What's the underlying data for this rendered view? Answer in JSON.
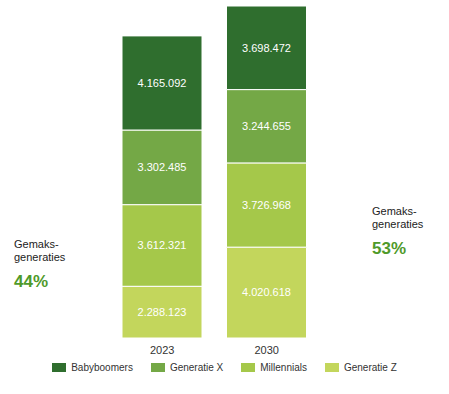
{
  "chart_data": {
    "type": "bar",
    "stacked": true,
    "data_labels": true,
    "tick_labels": "x",
    "legend": "bottom",
    "categories": [
      "2023",
      "2030"
    ],
    "series": [
      {
        "name": "Babyboomers",
        "color": "#2f6e2e",
        "values": [
          4165092,
          3698472
        ],
        "value_labels": [
          "4.165.092",
          "3.698.472"
        ]
      },
      {
        "name": "Generatie X",
        "color": "#74a846",
        "values": [
          3302485,
          3244655
        ],
        "value_labels": [
          "3.302.485",
          "3.244.655"
        ]
      },
      {
        "name": "Millennials",
        "color": "#a5c84a",
        "values": [
          3612321,
          3726968
        ],
        "value_labels": [
          "3.612.321",
          "3.726.968"
        ]
      },
      {
        "name": "Generatie Z",
        "color": "#c3d65c",
        "values": [
          2288123,
          4020618
        ],
        "value_labels": [
          "2.288.123",
          "4.020.618"
        ]
      }
    ],
    "annotations": [
      {
        "category": "2023",
        "text": "Gemaks-generaties",
        "label": "44%"
      },
      {
        "category": "2030",
        "text": "Gemaks-generaties",
        "label": "53%"
      }
    ]
  }
}
